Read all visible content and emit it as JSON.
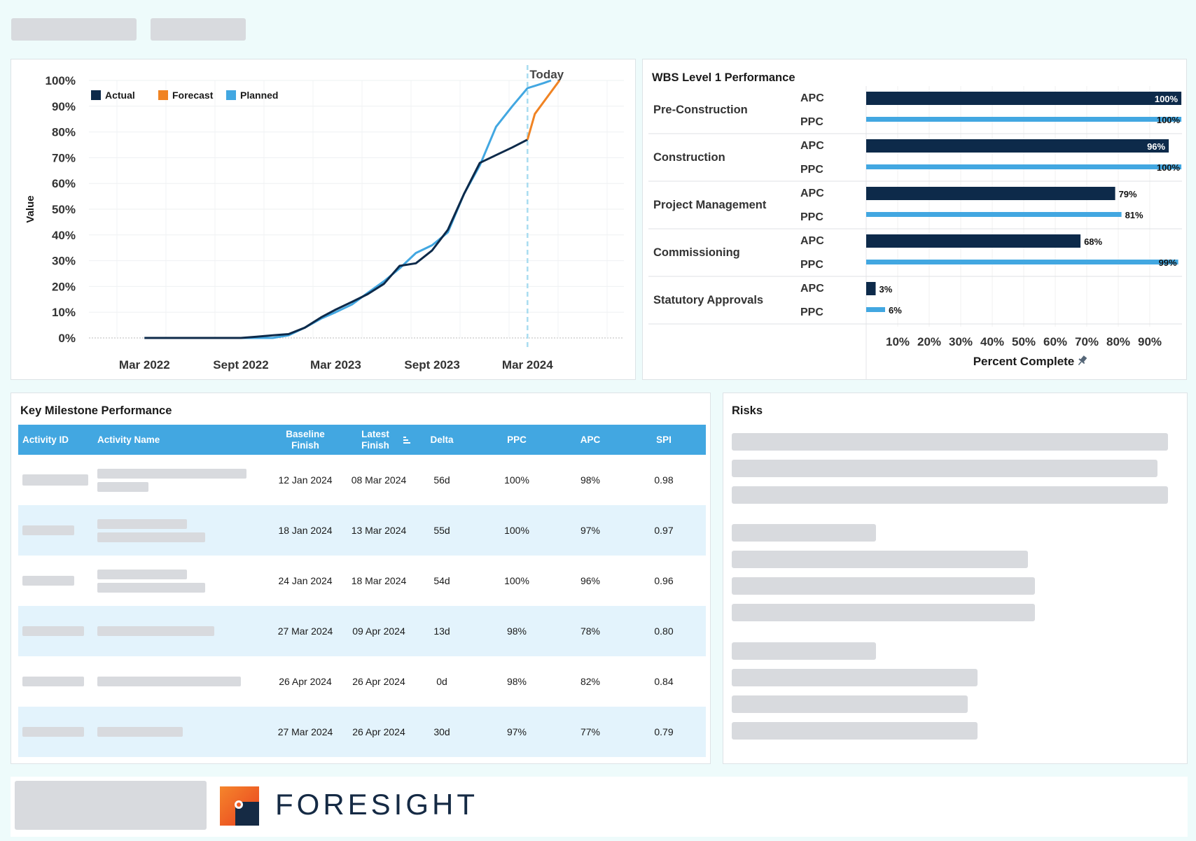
{
  "line_chart": {
    "chart_data": {
      "type": "line",
      "ylabel": "Value",
      "y_ticks": [
        "0%",
        "10%",
        "20%",
        "30%",
        "40%",
        "50%",
        "60%",
        "70%",
        "80%",
        "90%",
        "100%"
      ],
      "x_ticks": [
        "Mar 2022",
        "Sept 2022",
        "Mar 2023",
        "Sept 2023",
        "Mar 2024"
      ],
      "today_label": "Today",
      "legend": [
        "Actual",
        "Forecast",
        "Planned"
      ],
      "series": [
        {
          "name": "Actual",
          "color": "#0d2a4a",
          "points": [
            [
              "2022-03-01",
              0
            ],
            [
              "2022-06-01",
              0
            ],
            [
              "2022-09-01",
              0
            ],
            [
              "2022-10-01",
              0.5
            ],
            [
              "2022-11-01",
              1
            ],
            [
              "2022-12-01",
              1.5
            ],
            [
              "2023-01-01",
              4
            ],
            [
              "2023-02-01",
              8
            ],
            [
              "2023-03-01",
              11
            ],
            [
              "2023-04-01",
              14
            ],
            [
              "2023-05-01",
              17
            ],
            [
              "2023-06-01",
              21
            ],
            [
              "2023-07-01",
              28
            ],
            [
              "2023-08-01",
              29
            ],
            [
              "2023-09-01",
              34
            ],
            [
              "2023-10-01",
              42
            ],
            [
              "2023-11-01",
              56
            ],
            [
              "2023-12-01",
              68
            ],
            [
              "2024-01-01",
              71
            ],
            [
              "2024-02-01",
              74
            ],
            [
              "2024-03-01",
              77
            ]
          ]
        },
        {
          "name": "Forecast",
          "color": "#f08323",
          "points": [
            [
              "2024-03-01",
              77
            ],
            [
              "2024-03-15",
              87
            ],
            [
              "2024-05-01",
              100
            ]
          ]
        },
        {
          "name": "Planned",
          "color": "#42a7e1",
          "points": [
            [
              "2022-03-01",
              0
            ],
            [
              "2022-06-01",
              0
            ],
            [
              "2022-09-01",
              0
            ],
            [
              "2022-11-01",
              0
            ],
            [
              "2022-12-01",
              1
            ],
            [
              "2023-01-01",
              4
            ],
            [
              "2023-02-01",
              7.5
            ],
            [
              "2023-03-01",
              10
            ],
            [
              "2023-04-01",
              13
            ],
            [
              "2023-05-01",
              17.5
            ],
            [
              "2023-06-01",
              22
            ],
            [
              "2023-07-01",
              27
            ],
            [
              "2023-08-01",
              33
            ],
            [
              "2023-09-01",
              36
            ],
            [
              "2023-10-01",
              41
            ],
            [
              "2023-11-01",
              56
            ],
            [
              "2023-12-01",
              67
            ],
            [
              "2024-01-01",
              82
            ],
            [
              "2024-02-01",
              90
            ],
            [
              "2024-03-01",
              97
            ],
            [
              "2024-04-01",
              99
            ],
            [
              "2024-04-15",
              100
            ]
          ]
        }
      ],
      "today_date": "2024-03-01",
      "ylim": [
        0,
        100
      ]
    }
  },
  "wbs": {
    "title": "WBS Level 1 Performance",
    "chart_data": {
      "type": "bar",
      "xlabel": "Percent Complete",
      "x_ticks": [
        "10%",
        "20%",
        "30%",
        "40%",
        "50%",
        "60%",
        "70%",
        "80%",
        "90%"
      ],
      "xlim": [
        0,
        100
      ],
      "groups": [
        {
          "name": "Pre-Construction",
          "apc": 100,
          "ppc": 100
        },
        {
          "name": "Construction",
          "apc": 96,
          "ppc": 100
        },
        {
          "name": "Project Management",
          "apc": 79,
          "ppc": 81
        },
        {
          "name": "Commissioning",
          "apc": 68,
          "ppc": 99
        },
        {
          "name": "Statutory Approvals",
          "apc": 3,
          "ppc": 6
        }
      ],
      "apc_label": "APC",
      "ppc_label": "PPC",
      "apc_color": "#0d2a4a",
      "ppc_color": "#42a7e1"
    }
  },
  "milestones": {
    "title": "Key Milestone Performance",
    "headers": {
      "activity_id": "Activity ID",
      "activity_name": "Activity Name",
      "baseline_finish_1": "Baseline",
      "baseline_finish_2": "Finish",
      "latest_finish_1": "Latest",
      "latest_finish_2": "Finish",
      "delta": "Delta",
      "ppc": "PPC",
      "apc": "APC",
      "spi": "SPI"
    },
    "rows": [
      {
        "baseline": "12 Jan 2024",
        "latest": "08 Mar 2024",
        "delta": "56d",
        "ppc": "100%",
        "apc": "98%",
        "spi": "0.98"
      },
      {
        "baseline": "18 Jan 2024",
        "latest": "13 Mar 2024",
        "delta": "55d",
        "ppc": "100%",
        "apc": "97%",
        "spi": "0.97"
      },
      {
        "baseline": "24 Jan 2024",
        "latest": "18 Mar 2024",
        "delta": "54d",
        "ppc": "100%",
        "apc": "96%",
        "spi": "0.96"
      },
      {
        "baseline": "27 Mar 2024",
        "latest": "09 Apr 2024",
        "delta": "13d",
        "ppc": "98%",
        "apc": "78%",
        "spi": "0.80"
      },
      {
        "baseline": "26 Apr 2024",
        "latest": "26 Apr 2024",
        "delta": "0d",
        "ppc": "98%",
        "apc": "82%",
        "spi": "0.84"
      },
      {
        "baseline": "27 Mar 2024",
        "latest": "26 Apr 2024",
        "delta": "30d",
        "ppc": "97%",
        "apc": "77%",
        "spi": "0.79"
      }
    ]
  },
  "risks": {
    "title": "Risks"
  },
  "footer": {
    "brand": "FORESIGHT"
  },
  "colors": {
    "accent": "#42a7e1",
    "navy": "#0d2a4a",
    "orange": "#f08323"
  }
}
